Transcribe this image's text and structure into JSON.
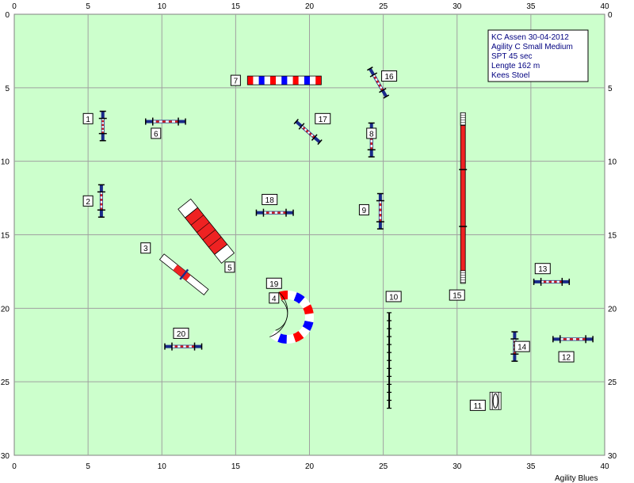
{
  "course": {
    "info_lines": [
      "KC Assen 30-04-2012",
      "Agility C Small Medium",
      "SPT 45 sec",
      "Lengte 162 m",
      "Kees Stoel"
    ],
    "credit": "Agility Blues"
  },
  "grid": {
    "x_ticks": [
      "0",
      "5",
      "10",
      "15",
      "20",
      "25",
      "30",
      "35",
      "40"
    ],
    "y_ticks": [
      "0",
      "5",
      "10",
      "15",
      "20",
      "25",
      "30"
    ],
    "field_color": "#ccffcc",
    "line_color": "#a0a0a0"
  },
  "obstacles": [
    {
      "num": "1",
      "type": "jump",
      "x1": 6.0,
      "y1": 6.6,
      "x2": 6.0,
      "y2": 8.6,
      "lx": 5.0,
      "ly": 7.1
    },
    {
      "num": "2",
      "type": "jump",
      "x1": 5.9,
      "y1": 11.6,
      "x2": 5.9,
      "y2": 13.8,
      "lx": 5.0,
      "ly": 12.7
    },
    {
      "num": "3",
      "type": "seesaw",
      "x1": 10.0,
      "y1": 16.5,
      "x2": 13.0,
      "y2": 18.9,
      "lx": 8.9,
      "ly": 15.9
    },
    {
      "num": "4",
      "type": "tunnel_curve",
      "cx": 18.5,
      "cy": 20.6,
      "r": 1.5,
      "lx": 17.6,
      "ly": 19.3
    },
    {
      "num": "5",
      "type": "box",
      "x1": 12.0,
      "y1": 13.5,
      "x2": 14.0,
      "y2": 16.0,
      "w": 1.1,
      "lx": 14.6,
      "ly": 17.2
    },
    {
      "num": "6",
      "type": "jump",
      "x1": 8.9,
      "y1": 7.3,
      "x2": 11.6,
      "y2": 7.3,
      "lx": 9.6,
      "ly": 8.1
    },
    {
      "num": "7",
      "type": "tunnel",
      "x1": 15.8,
      "y1": 4.5,
      "x2": 20.8,
      "y2": 4.5,
      "lx": 15.0,
      "ly": 4.5
    },
    {
      "num": "8",
      "type": "jump",
      "x1": 24.2,
      "y1": 7.4,
      "x2": 24.2,
      "y2": 9.7,
      "lx": 24.2,
      "ly": 8.1
    },
    {
      "num": "9",
      "type": "jump",
      "x1": 24.8,
      "y1": 12.2,
      "x2": 24.8,
      "y2": 14.6,
      "lx": 23.7,
      "ly": 13.3
    },
    {
      "num": "10",
      "type": "weave",
      "x1": 25.4,
      "y1": 20.3,
      "x2": 25.4,
      "y2": 26.8,
      "lx": 25.7,
      "ly": 19.2
    },
    {
      "num": "11",
      "type": "tire",
      "cx": 32.6,
      "cy": 26.3,
      "lx": 31.4,
      "ly": 26.6
    },
    {
      "num": "12",
      "type": "jump",
      "x1": 36.5,
      "y1": 22.1,
      "x2": 39.2,
      "y2": 22.1,
      "lx": 37.4,
      "ly": 23.3
    },
    {
      "num": "13",
      "type": "jump",
      "x1": 35.2,
      "y1": 18.2,
      "x2": 37.6,
      "y2": 18.2,
      "lx": 35.8,
      "ly": 17.3
    },
    {
      "num": "14",
      "type": "jump",
      "x1": 33.9,
      "y1": 21.6,
      "x2": 33.9,
      "y2": 23.6,
      "lx": 34.4,
      "ly": 22.6
    },
    {
      "num": "15",
      "type": "dogwalk",
      "x1": 30.4,
      "y1": 6.7,
      "x2": 30.4,
      "y2": 18.3,
      "lx": 30.0,
      "ly": 19.1
    },
    {
      "num": "16",
      "type": "jump",
      "x1": 24.1,
      "y1": 3.7,
      "x2": 25.2,
      "y2": 5.6,
      "lx": 25.4,
      "ly": 4.2
    },
    {
      "num": "17",
      "type": "jump",
      "x1": 19.1,
      "y1": 7.3,
      "x2": 20.7,
      "y2": 8.7,
      "lx": 20.9,
      "ly": 7.1
    },
    {
      "num": "18",
      "type": "jump",
      "x1": 16.4,
      "y1": 13.5,
      "x2": 18.9,
      "y2": 13.5,
      "lx": 17.3,
      "ly": 12.6
    },
    {
      "num": "19",
      "type": "label_only",
      "lx": 17.6,
      "ly": 18.3
    },
    {
      "num": "20",
      "type": "jump",
      "x1": 10.2,
      "y1": 22.6,
      "x2": 12.7,
      "y2": 22.6,
      "lx": 11.3,
      "ly": 21.7
    }
  ]
}
